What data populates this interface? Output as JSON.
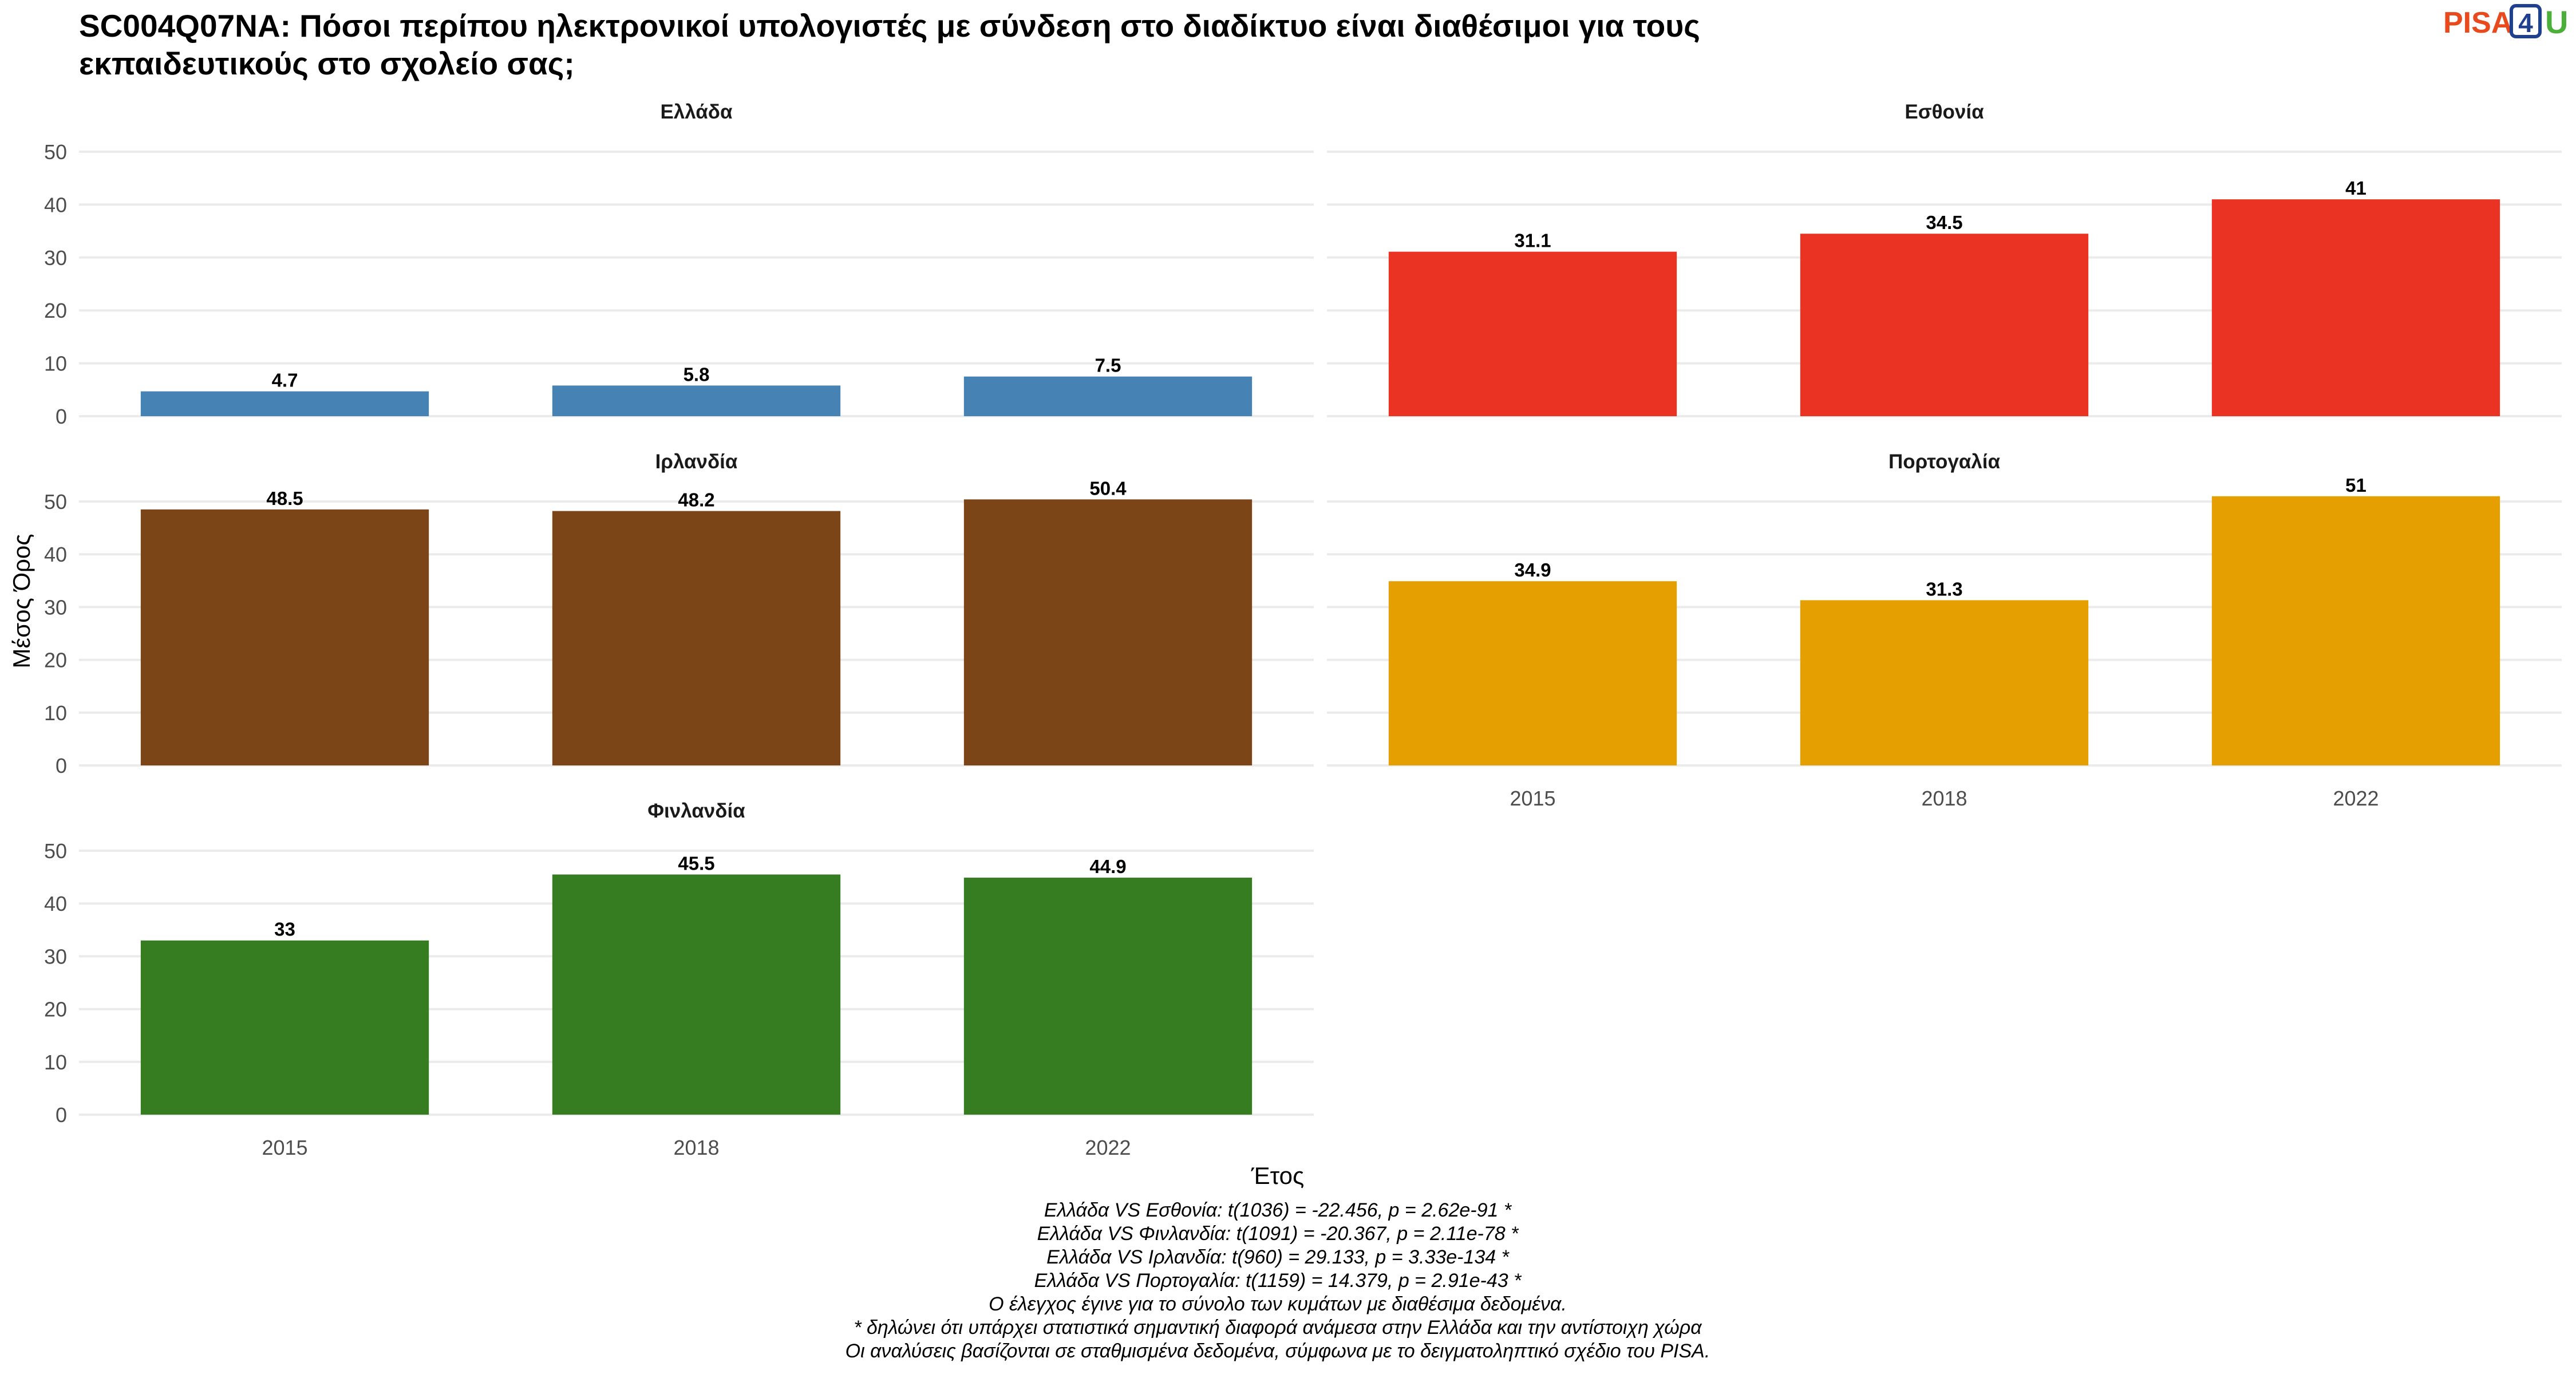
{
  "title_lines": [
    "SC004Q07NA: Πόσοι περίπου ηλεκτρονικοί υπολογιστές με σύνδεση στο διαδίκτυο είναι διαθέσιμοι για τους",
    "εκπαιδευτικούς στο σχολείο σας;"
  ],
  "logo": {
    "part1": "PISA",
    "part2": "4",
    "part3": "U"
  },
  "chart_data": {
    "type": "bar",
    "categories": [
      "2015",
      "2018",
      "2022"
    ],
    "xlabel": "Έτος",
    "ylabel": "Μέσος Όρος",
    "ylim": [
      0,
      50
    ],
    "yticks": [
      0,
      10,
      20,
      30,
      40,
      50
    ],
    "grid": true,
    "series": [
      {
        "name": "Ελλάδα",
        "values": [
          4.7,
          5.8,
          7.5
        ],
        "labels": [
          "4.7",
          "5.8",
          "7.5"
        ],
        "color": "#4682B4"
      },
      {
        "name": "Εσθονία",
        "values": [
          31.1,
          34.5,
          41
        ],
        "labels": [
          "31.1",
          "34.5",
          "41"
        ],
        "color": "#EA3323"
      },
      {
        "name": "Ιρλανδία",
        "values": [
          48.5,
          48.2,
          50.4
        ],
        "labels": [
          "48.5",
          "48.2",
          "50.4"
        ],
        "color": "#7B4517"
      },
      {
        "name": "Πορτογαλία",
        "values": [
          34.9,
          31.3,
          51
        ],
        "labels": [
          "34.9",
          "31.3",
          "51"
        ],
        "color": "#E59F01"
      },
      {
        "name": "Φινλανδία",
        "values": [
          33,
          45.5,
          44.9
        ],
        "labels": [
          "33",
          "45.5",
          "44.9"
        ],
        "color": "#367C21"
      }
    ]
  },
  "notes": [
    "Ελλάδα VS Εσθονία: t(1036) = -22.456, p = 2.62e-91 *",
    "Ελλάδα VS Φινλανδία: t(1091) = -20.367, p = 2.11e-78 *",
    "Ελλάδα VS Ιρλανδία: t(960) = 29.133, p = 3.33e-134 *",
    "Ελλάδα VS Πορτογαλία: t(1159) = 14.379, p = 2.91e-43 *",
    "Ο έλεγχος έγινε για το σύνολο των κυμάτων με διαθέσιμα δεδομένα.",
    "* δηλώνει ότι υπάρχει στατιστικά σημαντική διαφορά ανάμεσα στην Ελλάδα και την αντίστοιχη χώρα",
    "Οι αναλύσεις βασίζονται σε σταθμισμένα δεδομένα, σύμφωνα με το δειγματοληπτικό σχέδιο του PISA."
  ]
}
